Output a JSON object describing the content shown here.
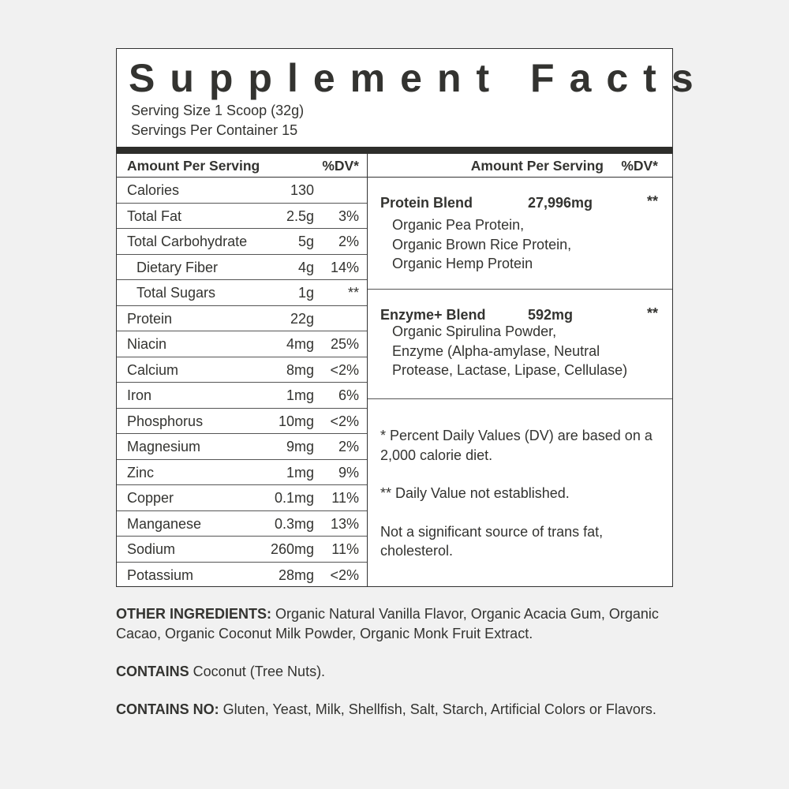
{
  "title": "Supplement Facts",
  "serving_size": "Serving Size 1 Scoop (32g)",
  "servings_per_container": "Servings Per Container 15",
  "left_header": {
    "amount": "Amount Per Serving",
    "dv": "%DV*"
  },
  "right_header": {
    "amount": "Amount Per Serving",
    "dv": "%DV*"
  },
  "nutrients": [
    {
      "name": "Calories",
      "amount": "130",
      "dv": ""
    },
    {
      "name": "Total Fat",
      "amount": "2.5g",
      "dv": "3%"
    },
    {
      "name": "Total Carbohydrate",
      "amount": "5g",
      "dv": "2%"
    },
    {
      "name": "Dietary Fiber",
      "amount": "4g",
      "dv": "14%"
    },
    {
      "name": "Total Sugars",
      "amount": "1g",
      "dv": "**"
    },
    {
      "name": "Protein",
      "amount": "22g",
      "dv": ""
    },
    {
      "name": "Niacin",
      "amount": "4mg",
      "dv": "25%"
    },
    {
      "name": "Calcium",
      "amount": "8mg",
      "dv": "<2%"
    },
    {
      "name": "Iron",
      "amount": "1mg",
      "dv": "6%"
    },
    {
      "name": "Phosphorus",
      "amount": "10mg",
      "dv": "<2%"
    },
    {
      "name": "Magnesium",
      "amount": "9mg",
      "dv": "2%"
    },
    {
      "name": "Zinc",
      "amount": "1mg",
      "dv": "9%"
    },
    {
      "name": "Copper",
      "amount": "0.1mg",
      "dv": "11%"
    },
    {
      "name": "Manganese",
      "amount": "0.3mg",
      "dv": "13%"
    },
    {
      "name": "Sodium",
      "amount": "260mg",
      "dv": "11%"
    },
    {
      "name": "Potassium",
      "amount": "28mg",
      "dv": "<2%"
    }
  ],
  "blends": [
    {
      "name": "Protein Blend",
      "amount": "27,996mg",
      "dv": "**",
      "lines": [
        "Organic Pea Protein,",
        "Organic Brown Rice Protein,",
        "Organic Hemp Protein"
      ]
    },
    {
      "name": "Enzyme+ Blend",
      "amount": "592mg",
      "dv": "**",
      "lines": [
        "Organic Spirulina Powder,",
        "Enzyme (Alpha-amylase, Neutral",
        "Protease, Lactase, Lipase, Cellulase)"
      ]
    }
  ],
  "footnotes": [
    "* Percent Daily Values (DV) are based on a 2,000 calorie diet.",
    "** Daily Value not established.",
    "Not a significant source of trans fat, cholesterol."
  ],
  "other_ingredients": {
    "label": "OTHER INGREDIENTS:",
    "text": " Organic Natural Vanilla Flavor, Organic Acacia Gum, Organic Cacao, Organic Coconut Milk Powder, Organic Monk Fruit Extract."
  },
  "contains": {
    "label": "CONTAINS",
    "text": " Coconut (Tree Nuts)."
  },
  "contains_no": {
    "label": "CONTAINS NO:",
    "text": " Gluten, Yeast, Milk, Shellfish, Salt, Starch, Artificial Colors or Flavors."
  }
}
